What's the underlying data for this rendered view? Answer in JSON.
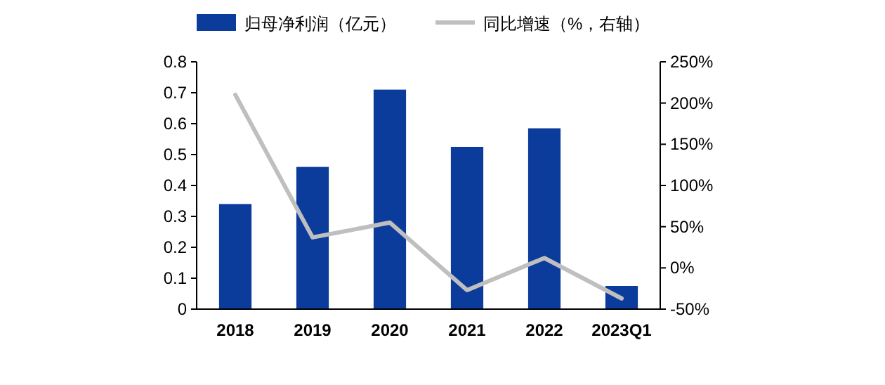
{
  "chart_data": {
    "type": "bar",
    "categories": [
      "2018",
      "2019",
      "2020",
      "2021",
      "2022",
      "2023Q1"
    ],
    "series": [
      {
        "name": "归母净利润（亿元）",
        "color": "#0b3b9b",
        "values": [
          0.34,
          0.46,
          0.71,
          0.525,
          0.585,
          0.075
        ]
      },
      {
        "name": "同比增速（%，右轴）",
        "type": "line",
        "axis": "y2",
        "color": "#bfbfbf",
        "values": [
          210,
          37,
          55,
          -27,
          12,
          -37
        ]
      }
    ],
    "ylim": [
      0,
      0.8
    ],
    "yticks": [
      0,
      0.1,
      0.2,
      0.3,
      0.4,
      0.5,
      0.6,
      0.7,
      0.8
    ],
    "y2lim": [
      -50,
      250
    ],
    "y2ticks": [
      {
        "value": -50,
        "label": "-50%"
      },
      {
        "value": 0,
        "label": "0%"
      },
      {
        "value": 50,
        "label": "50%"
      },
      {
        "value": 100,
        "label": "100%"
      },
      {
        "value": 150,
        "label": "150%"
      },
      {
        "value": 200,
        "label": "200%"
      },
      {
        "value": 250,
        "label": "250%"
      }
    ],
    "legend": "top",
    "grid": false
  }
}
